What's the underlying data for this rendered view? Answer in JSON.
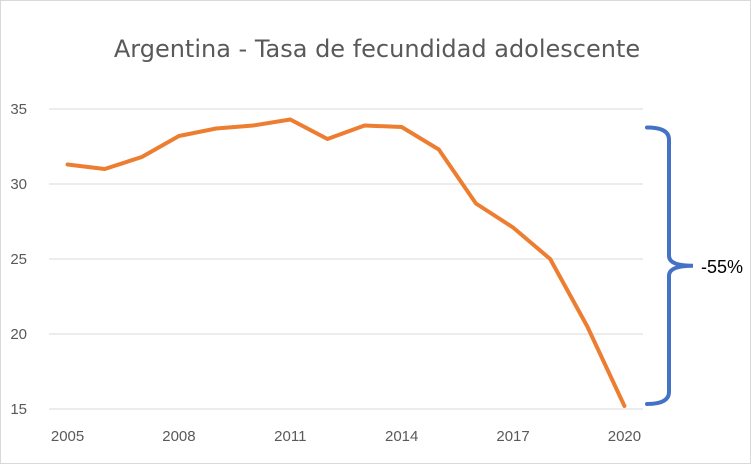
{
  "chart_data": {
    "type": "line",
    "title": "Argentina - Tasa de fecundidad adolescente",
    "xlabel": "",
    "ylabel": "",
    "x": [
      2005,
      2006,
      2007,
      2008,
      2009,
      2010,
      2011,
      2012,
      2013,
      2014,
      2015,
      2016,
      2017,
      2018,
      2019,
      2020
    ],
    "x_tick_labels": [
      "2005",
      "2008",
      "2011",
      "2014",
      "2017",
      "2020"
    ],
    "y_tick_labels": [
      "15",
      "20",
      "25",
      "30",
      "35"
    ],
    "xlim": [
      2004.5,
      2020.5
    ],
    "ylim": [
      15,
      35
    ],
    "grid": true,
    "series": [
      {
        "values": [
          31.3,
          31.0,
          31.8,
          33.2,
          33.7,
          33.9,
          34.3,
          33.0,
          33.9,
          33.8,
          32.3,
          28.7,
          27.1,
          25.0,
          20.5,
          15.2
        ],
        "color": "#ed7d31"
      }
    ],
    "annotation": {
      "label": "-55%",
      "color": "#4472c4",
      "from": 33.9,
      "to": 15.2
    }
  }
}
